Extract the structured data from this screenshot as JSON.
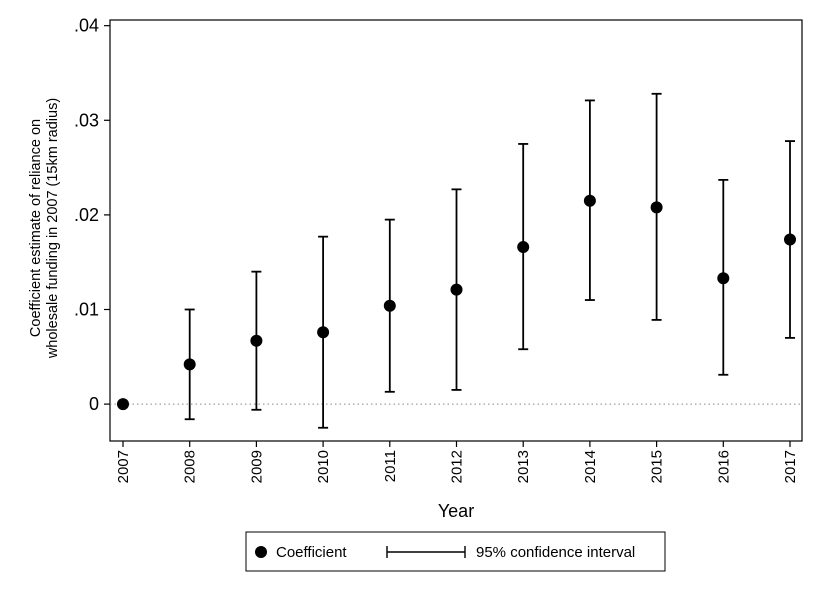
{
  "chart_data": {
    "type": "scatter",
    "title": "",
    "xlabel": "Year",
    "ylabel_lines": [
      "Coefficient estimate of reliance on",
      "wholesale funding in 2007 (15km radius)"
    ],
    "x": [
      "2007",
      "2008",
      "2009",
      "2010",
      "2011",
      "2012",
      "2013",
      "2014",
      "2015",
      "2016",
      "2017"
    ],
    "series": [
      {
        "name": "Coefficient",
        "values": [
          0.0,
          0.0042,
          0.0067,
          0.0076,
          0.0104,
          0.0121,
          0.0166,
          0.0215,
          0.0208,
          0.0133,
          0.0174
        ]
      },
      {
        "name": "95% confidence interval",
        "lower": [
          null,
          -0.0016,
          -0.0006,
          -0.0025,
          0.0013,
          0.0015,
          0.0058,
          0.011,
          0.0089,
          0.0031,
          0.007
        ],
        "upper": [
          null,
          0.01,
          0.014,
          0.0177,
          0.0195,
          0.0227,
          0.0275,
          0.0321,
          0.0328,
          0.0237,
          0.0278
        ]
      }
    ],
    "yticks": [
      0,
      0.01,
      0.02,
      0.03,
      0.04
    ],
    "ytick_labels": [
      "0",
      ".01",
      ".02",
      ".03",
      ".04"
    ],
    "ylim": [
      -0.0039,
      0.0406
    ],
    "grid": false,
    "zero_reference_line": "dotted",
    "legend": {
      "position": "bottom",
      "items": [
        "Coefficient",
        "95% confidence interval"
      ]
    }
  }
}
